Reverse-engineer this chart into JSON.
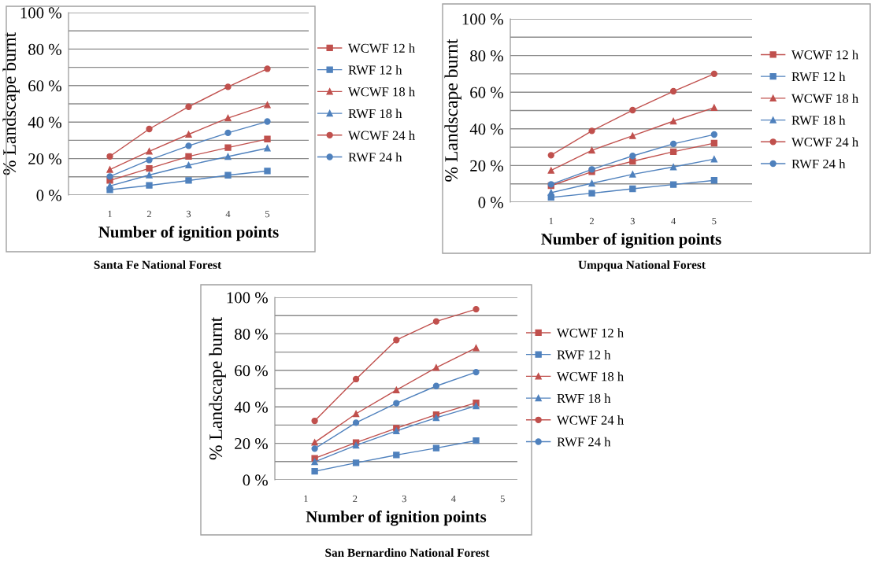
{
  "chart_data": [
    {
      "type": "line",
      "xlabel": "Number of ignition points",
      "ylabel": "% Landscape burnt",
      "annotations": [
        "Santa Fe National Forest"
      ],
      "x": [
        1,
        2,
        3,
        4,
        5
      ],
      "xlim": [
        -0.05,
        6.05
      ],
      "xticks": [
        1,
        2,
        3,
        4,
        5
      ],
      "ylim": [
        0,
        100
      ],
      "yticks": [
        {
          "value": 0,
          "label": "0 %"
        },
        {
          "value": 10,
          "label": null
        },
        {
          "value": 20,
          "label": "20 %"
        },
        {
          "value": 30,
          "label": null
        },
        {
          "value": 40,
          "label": "40 %"
        },
        {
          "value": 50,
          "label": null
        },
        {
          "value": 60,
          "label": "60 %"
        },
        {
          "value": 70,
          "label": null
        },
        {
          "value": 80,
          "label": "80 %"
        },
        {
          "value": 90,
          "label": null
        },
        {
          "value": 100,
          "label": "100 %"
        }
      ],
      "grid": "y",
      "legend": "right",
      "series": [
        {
          "name": "WCWF 12 h",
          "color": "#c0504d",
          "marker": "square",
          "values": [
            8,
            14.6,
            21.2,
            26,
            30.7
          ]
        },
        {
          "name": "RWF 12 h",
          "color": "#4f81bd",
          "marker": "square",
          "values": [
            2.9,
            5.3,
            8,
            10.9,
            13.2
          ]
        },
        {
          "name": "WCWF 18 h",
          "color": "#c0504d",
          "marker": "triangle",
          "values": [
            14,
            24,
            33.3,
            42.2,
            49.4
          ]
        },
        {
          "name": "RWF 18 h",
          "color": "#4f81bd",
          "marker": "triangle",
          "values": [
            5,
            11,
            16.4,
            21.1,
            25.7
          ]
        },
        {
          "name": "WCWF 24 h",
          "color": "#c0504d",
          "marker": "circle",
          "values": [
            21.2,
            36.2,
            48.4,
            59.3,
            69.2
          ]
        },
        {
          "name": "RWF 24 h",
          "color": "#4f81bd",
          "marker": "circle",
          "values": [
            10.2,
            19.2,
            27,
            34.1,
            40.3
          ]
        }
      ]
    },
    {
      "type": "line",
      "xlabel": "Number of ignition points",
      "ylabel": "% Landscape burnt",
      "annotations": [
        "Umpqua National Forest"
      ],
      "x": [
        1,
        2,
        3,
        4,
        5
      ],
      "xlim": [
        0,
        5.93
      ],
      "xticks": [
        1,
        2,
        3,
        4,
        5
      ],
      "ylim": [
        0,
        100
      ],
      "yticks": [
        {
          "value": 0,
          "label": "0 %"
        },
        {
          "value": 10,
          "label": null
        },
        {
          "value": 20,
          "label": "20 %"
        },
        {
          "value": 30,
          "label": null
        },
        {
          "value": 40,
          "label": "40 %"
        },
        {
          "value": 50,
          "label": null
        },
        {
          "value": 60,
          "label": "60 %"
        },
        {
          "value": 70,
          "label": null
        },
        {
          "value": 80,
          "label": "80 %"
        },
        {
          "value": 90,
          "label": null
        },
        {
          "value": 100,
          "label": "100 %"
        }
      ],
      "grid": "y",
      "legend": "right",
      "series": [
        {
          "name": "WCWF 12 h",
          "color": "#c0504d",
          "marker": "square",
          "values": [
            9,
            16.6,
            22.3,
            27.5,
            32.2
          ]
        },
        {
          "name": "RWF 12 h",
          "color": "#4f81bd",
          "marker": "square",
          "values": [
            2.6,
            4.9,
            7.3,
            9.6,
            11.9
          ]
        },
        {
          "name": "WCWF 18 h",
          "color": "#c0504d",
          "marker": "triangle",
          "values": [
            17.3,
            28.3,
            36.2,
            44.2,
            51.6
          ]
        },
        {
          "name": "RWF 18 h",
          "color": "#4f81bd",
          "marker": "triangle",
          "values": [
            5.2,
            10.3,
            15.2,
            19.2,
            23.5
          ]
        },
        {
          "name": "WCWF 24 h",
          "color": "#c0504d",
          "marker": "circle",
          "values": [
            25.6,
            38.9,
            50.2,
            60.5,
            70
          ]
        },
        {
          "name": "RWF 24 h",
          "color": "#4f81bd",
          "marker": "circle",
          "values": [
            9.7,
            17.9,
            25.2,
            31.8,
            36.9
          ]
        }
      ]
    },
    {
      "type": "line",
      "xlabel": "Number of ignition points",
      "ylabel": "% Landscape burnt",
      "annotations": [
        "San Bernardino National Forest"
      ],
      "x": [
        1.18,
        2.02,
        2.84,
        3.65,
        4.46
      ],
      "xlim": [
        0.37,
        5.3
      ],
      "xticks": [
        1,
        2,
        3,
        4,
        5
      ],
      "ylim": [
        0,
        100
      ],
      "yticks": [
        {
          "value": 0,
          "label": "0 %"
        },
        {
          "value": 10,
          "label": null
        },
        {
          "value": 20,
          "label": "20 %"
        },
        {
          "value": 30,
          "label": null
        },
        {
          "value": 40,
          "label": "40 %"
        },
        {
          "value": 50,
          "label": null
        },
        {
          "value": 60,
          "label": "60 %"
        },
        {
          "value": 70,
          "label": null
        },
        {
          "value": 80,
          "label": "80 %"
        },
        {
          "value": 90,
          "label": null
        },
        {
          "value": 100,
          "label": "100 %"
        }
      ],
      "grid": "y",
      "legend": "right",
      "series": [
        {
          "name": "WCWF 12 h",
          "color": "#c0504d",
          "marker": "square",
          "values": [
            11.8,
            20.4,
            28.3,
            35.7,
            42.2
          ]
        },
        {
          "name": "RWF 12 h",
          "color": "#4f81bd",
          "marker": "square",
          "values": [
            4.7,
            9.3,
            13.6,
            17.4,
            21.5
          ]
        },
        {
          "name": "WCWF 18 h",
          "color": "#c0504d",
          "marker": "triangle",
          "values": [
            20.5,
            36.2,
            49.2,
            61.5,
            72.3
          ]
        },
        {
          "name": "RWF 18 h",
          "color": "#4f81bd",
          "marker": "triangle",
          "values": [
            9.9,
            18.9,
            26.8,
            34,
            40.5
          ]
        },
        {
          "name": "WCWF 24 h",
          "color": "#c0504d",
          "marker": "circle",
          "values": [
            32.3,
            55.2,
            76.6,
            86.8,
            93.5
          ]
        },
        {
          "name": "RWF 24 h",
          "color": "#4f81bd",
          "marker": "circle",
          "values": [
            17.1,
            31.3,
            42,
            51.4,
            59
          ]
        }
      ]
    }
  ]
}
